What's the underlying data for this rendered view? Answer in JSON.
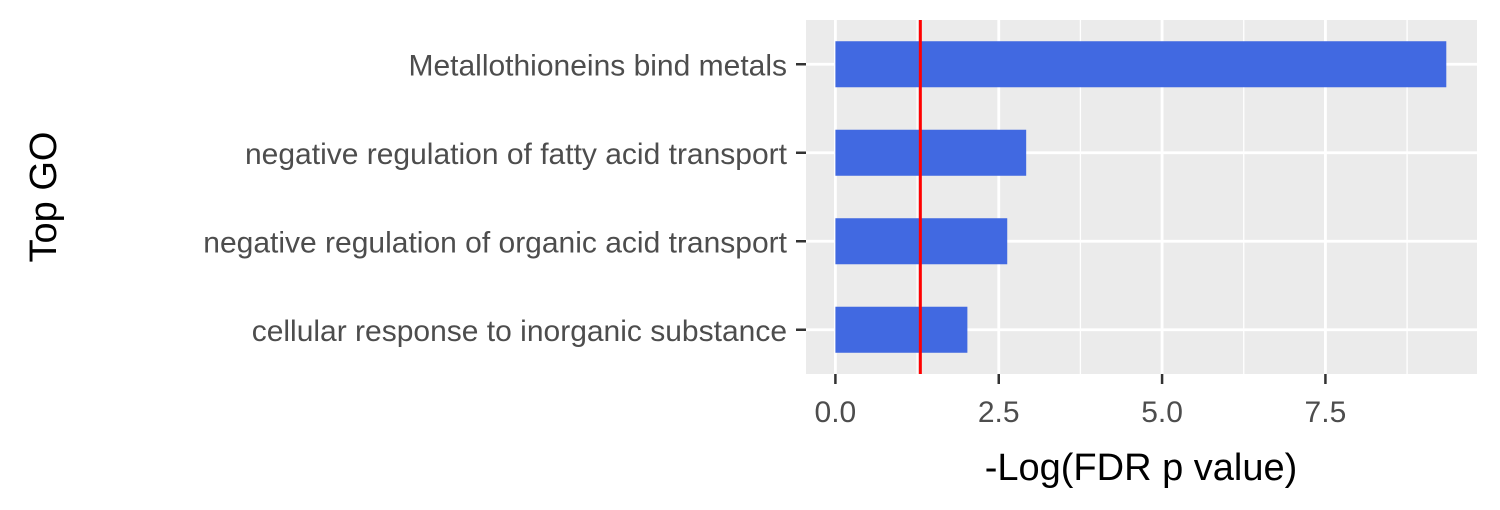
{
  "chart_data": {
    "type": "bar",
    "orientation": "horizontal",
    "categories": [
      "Metallothioneins bind metals",
      "negative regulation of fatty acid transport",
      "negative regulation of organic acid transport",
      "cellular response to inorganic substance"
    ],
    "values": [
      9.35,
      2.92,
      2.63,
      2.02
    ],
    "xlabel": "-Log(FDR p value)",
    "ylabel": "Top GO",
    "xlim": [
      -0.45,
      9.82
    ],
    "xticks": [
      "0.0",
      "2.5",
      "5.0",
      "7.5"
    ],
    "xtick_values": [
      0,
      2.5,
      5.0,
      7.5
    ],
    "reference_line": {
      "x": 1.3,
      "color": "#ff0000"
    },
    "bar_color": "#4169e1",
    "panel_background": "#ebebeb",
    "grid": true,
    "legend": "none"
  }
}
